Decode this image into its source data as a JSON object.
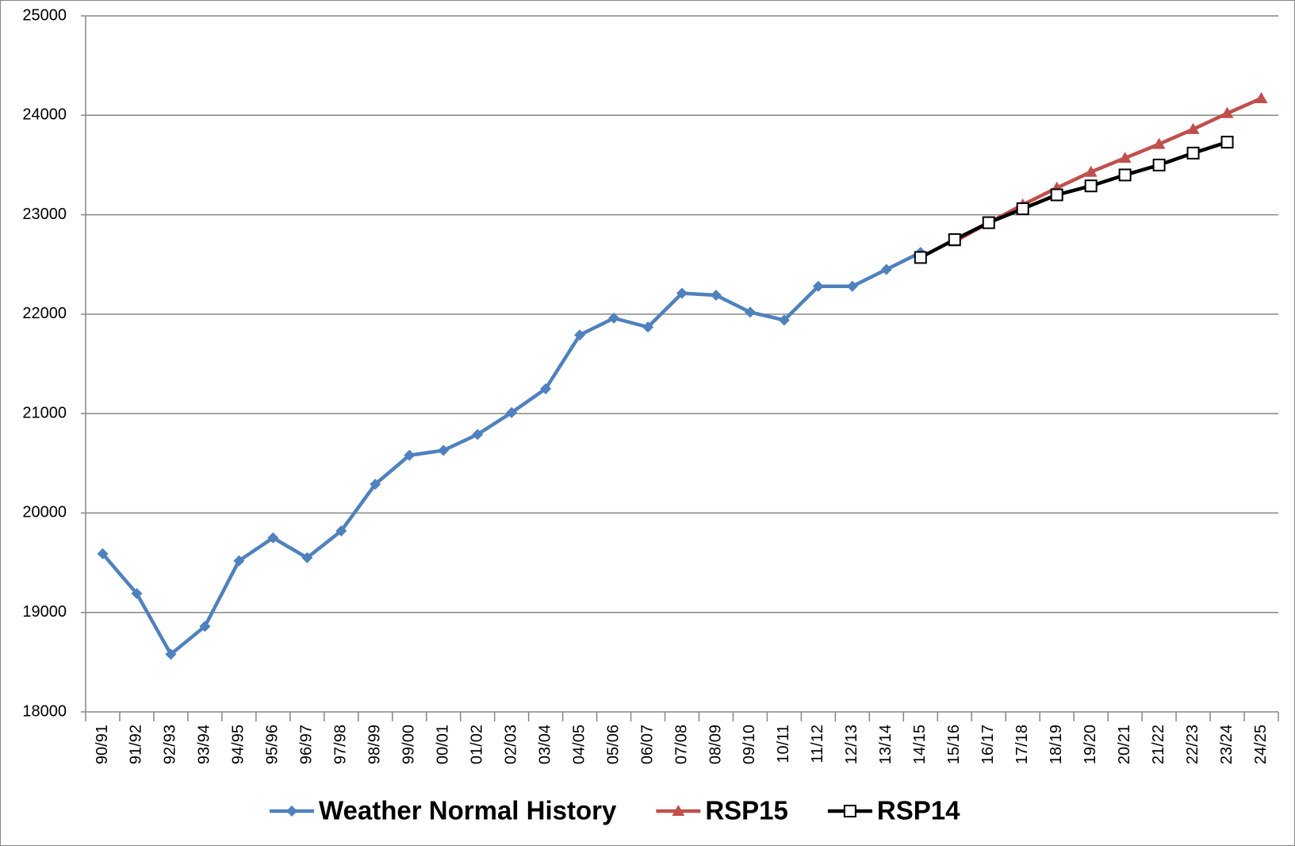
{
  "chart_data": {
    "type": "line",
    "categories": [
      "90/91",
      "91/92",
      "92/93",
      "93/94",
      "94/95",
      "95/96",
      "96/97",
      "97/98",
      "98/99",
      "99/00",
      "00/01",
      "01/02",
      "02/03",
      "03/04",
      "04/05",
      "05/06",
      "06/07",
      "07/08",
      "08/09",
      "09/10",
      "10/11",
      "11/12",
      "12/13",
      "13/14",
      "14/15",
      "15/16",
      "16/17",
      "17/18",
      "18/19",
      "19/20",
      "20/21",
      "21/22",
      "22/23",
      "23/24",
      "24/25"
    ],
    "series": [
      {
        "name": "Weather Normal History",
        "color": "#4f81bd",
        "marker": "diamond",
        "values": [
          19590,
          19190,
          18580,
          18860,
          19520,
          19750,
          19550,
          19820,
          20290,
          20580,
          20630,
          20790,
          21010,
          21250,
          21790,
          21960,
          21870,
          22210,
          22190,
          22020,
          21940,
          22280,
          22280,
          22450,
          22620,
          null,
          null,
          null,
          null,
          null,
          null,
          null,
          null,
          null,
          null
        ]
      },
      {
        "name": "RSP15",
        "color": "#c0504d",
        "marker": "triangle",
        "values": [
          null,
          null,
          null,
          null,
          null,
          null,
          null,
          null,
          null,
          null,
          null,
          null,
          null,
          null,
          null,
          null,
          null,
          null,
          null,
          null,
          null,
          null,
          null,
          null,
          null,
          22730,
          22920,
          23100,
          23270,
          23430,
          23570,
          23710,
          23860,
          24020,
          24170
        ]
      },
      {
        "name": "RSP14",
        "color": "#000000",
        "marker": "square",
        "values": [
          null,
          null,
          null,
          null,
          null,
          null,
          null,
          null,
          null,
          null,
          null,
          null,
          null,
          null,
          null,
          null,
          null,
          null,
          null,
          null,
          null,
          null,
          null,
          null,
          22570,
          22750,
          22920,
          23060,
          23200,
          23290,
          23400,
          23500,
          23620,
          23730,
          null
        ]
      }
    ],
    "ylim": [
      18000,
      25000
    ],
    "yticks": [
      18000,
      19000,
      20000,
      21000,
      22000,
      23000,
      24000,
      25000
    ],
    "grid": true
  }
}
